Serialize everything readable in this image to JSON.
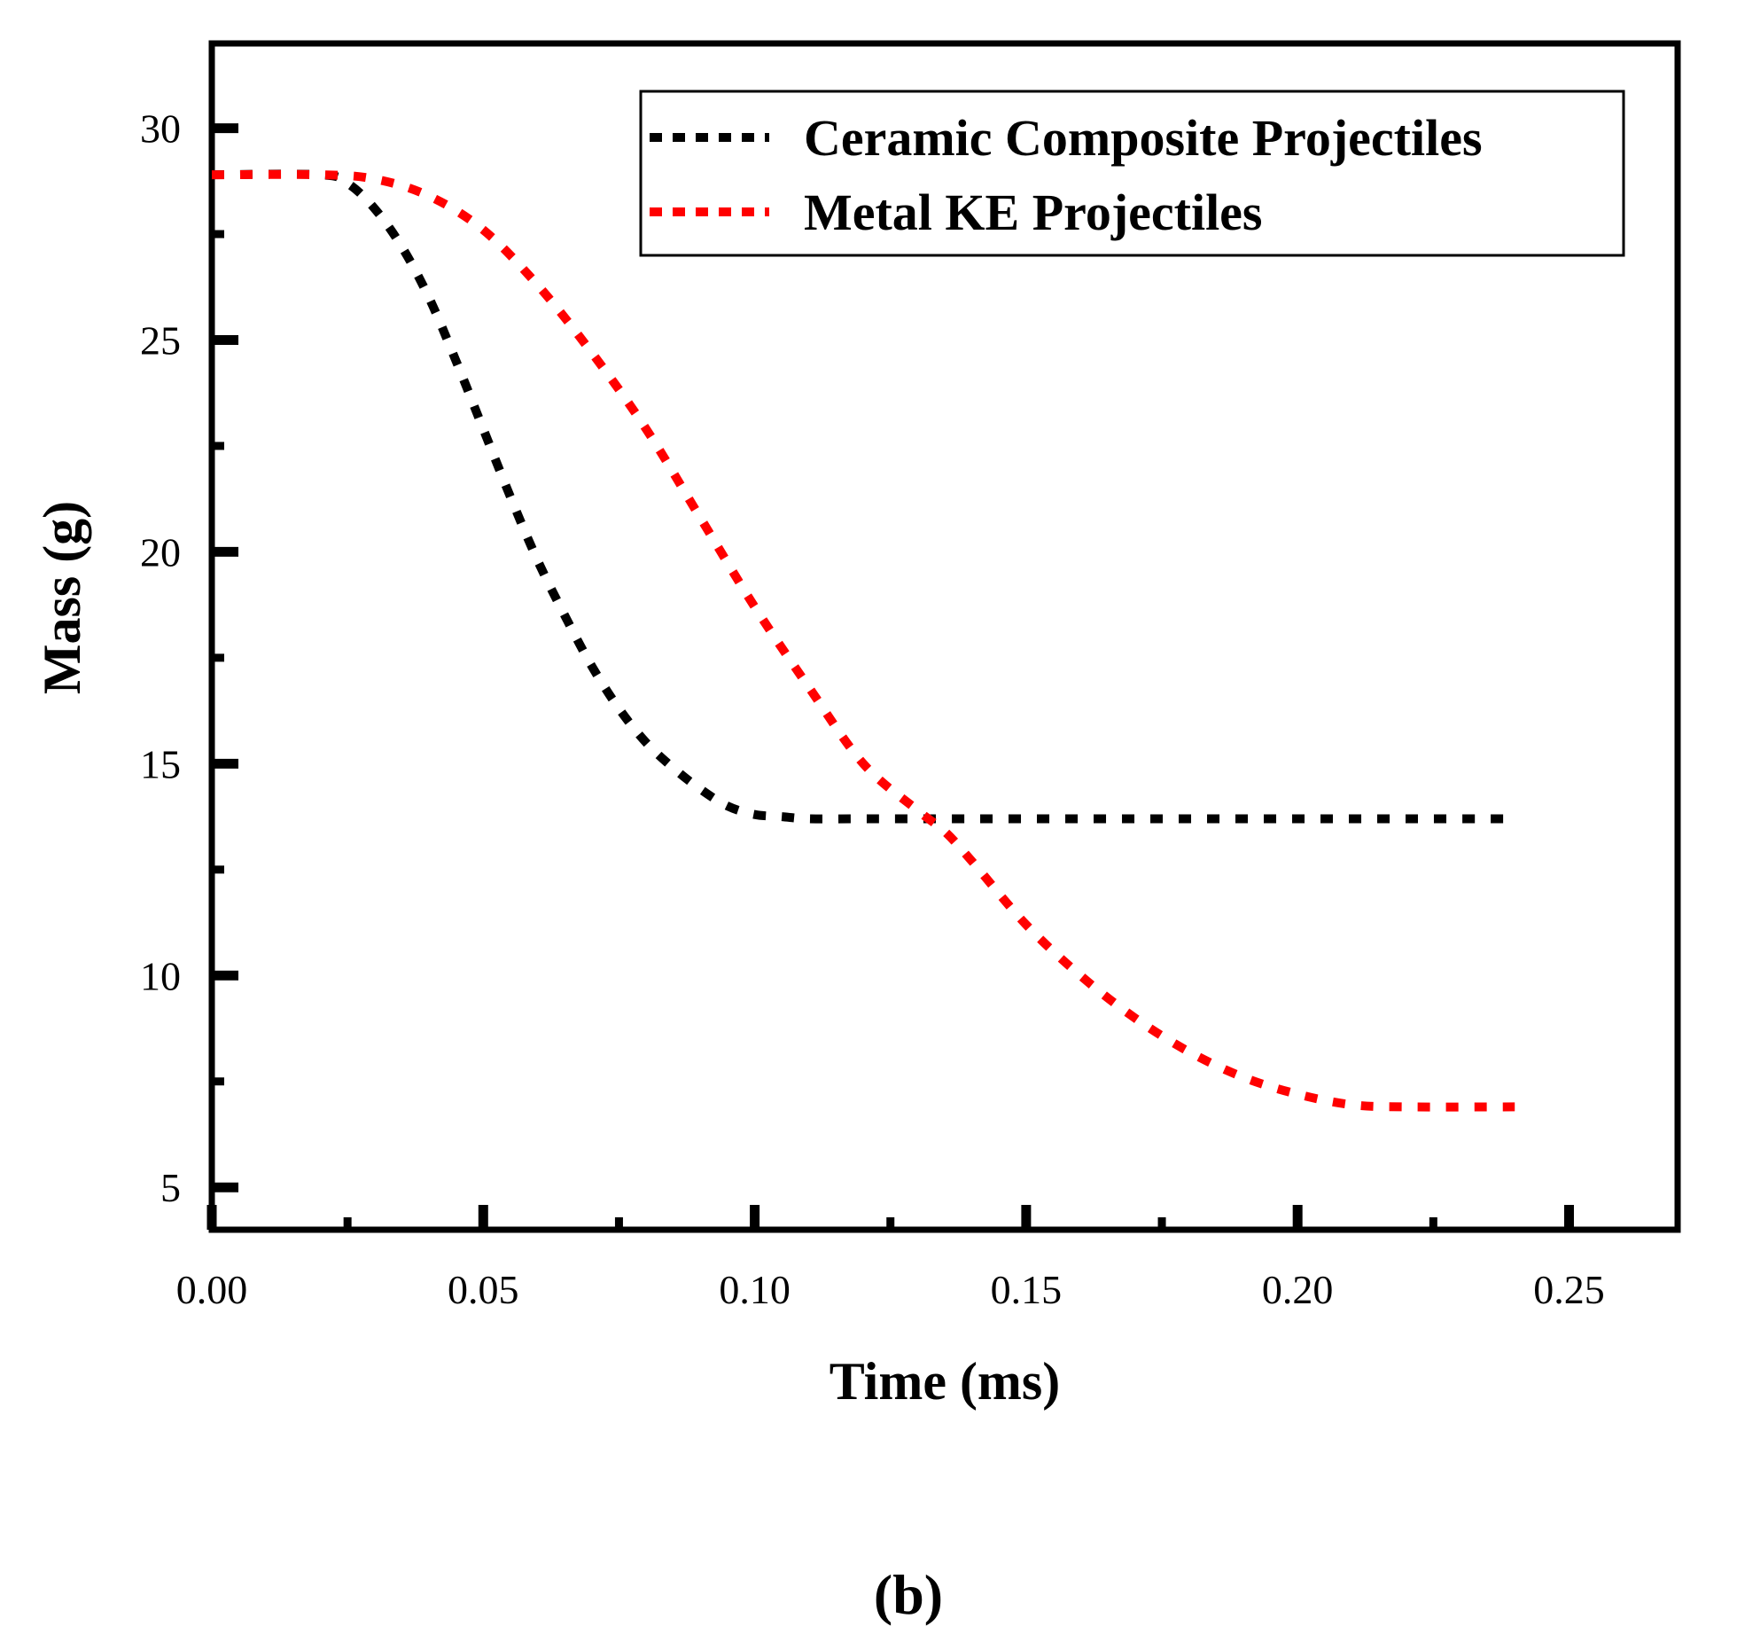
{
  "chart_data": {
    "type": "line",
    "title": "",
    "xlabel": "Time (ms)",
    "ylabel": "Mass (g)",
    "xlim": [
      0.0,
      0.27
    ],
    "ylim": [
      4.0,
      32.0
    ],
    "x_ticks": [
      0.0,
      0.05,
      0.1,
      0.15,
      0.2,
      0.25
    ],
    "x_tick_labels": [
      "0.00",
      "0.05",
      "0.10",
      "0.15",
      "0.20",
      "0.25"
    ],
    "y_ticks": [
      5,
      10,
      15,
      20,
      25,
      30
    ],
    "y_tick_labels": [
      "5",
      "10",
      "15",
      "20",
      "25",
      "30"
    ],
    "grid": false,
    "legend_position": "top-right",
    "panel_label": "(b)",
    "series": [
      {
        "name": "Ceramic Composite Projectiles",
        "color": "#000000",
        "style": "dotted",
        "x": [
          0.0,
          0.02,
          0.025,
          0.03,
          0.035,
          0.04,
          0.045,
          0.05,
          0.055,
          0.06,
          0.065,
          0.07,
          0.075,
          0.08,
          0.085,
          0.09,
          0.095,
          0.1,
          0.105,
          0.11,
          0.12,
          0.14,
          0.16,
          0.18,
          0.2,
          0.22,
          0.24
        ],
        "y": [
          28.9,
          28.9,
          28.7,
          28.1,
          27.2,
          26.0,
          24.5,
          22.9,
          21.3,
          19.8,
          18.5,
          17.3,
          16.3,
          15.5,
          14.9,
          14.4,
          14.0,
          13.8,
          13.75,
          13.7,
          13.7,
          13.7,
          13.7,
          13.7,
          13.7,
          13.7,
          13.7
        ]
      },
      {
        "name": "Metal KE Projectiles",
        "color": "#ff0000",
        "style": "dotted",
        "x": [
          0.0,
          0.02,
          0.03,
          0.04,
          0.05,
          0.06,
          0.07,
          0.08,
          0.09,
          0.1,
          0.11,
          0.12,
          0.13,
          0.135,
          0.14,
          0.15,
          0.16,
          0.17,
          0.18,
          0.19,
          0.2,
          0.21,
          0.22,
          0.24
        ],
        "y": [
          28.9,
          28.9,
          28.8,
          28.4,
          27.6,
          26.3,
          24.7,
          22.9,
          20.8,
          18.7,
          16.8,
          15.0,
          13.9,
          13.4,
          12.7,
          11.2,
          10.0,
          9.0,
          8.2,
          7.6,
          7.2,
          6.95,
          6.9,
          6.9
        ]
      }
    ]
  }
}
